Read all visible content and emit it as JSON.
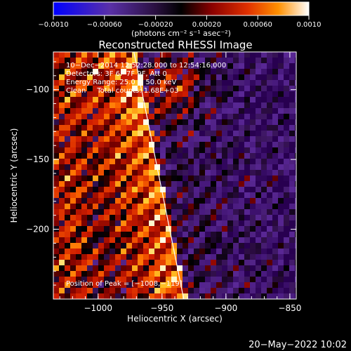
{
  "chart_data": {
    "type": "heatmap",
    "title": "Reconstructed RHESSI Image",
    "xlabel": "Heliocentric X (arcsec)",
    "ylabel": "Heliocentric Y (arcsec)",
    "xlim": [
      -1035,
      -845
    ],
    "ylim": [
      -250,
      -73
    ],
    "x_ticks": [
      {
        "value": -1000,
        "label": "−1000"
      },
      {
        "value": -950,
        "label": "−950"
      },
      {
        "value": -900,
        "label": "−900"
      },
      {
        "value": -850,
        "label": "−850"
      }
    ],
    "y_ticks": [
      {
        "value": -100,
        "label": "−100"
      },
      {
        "value": -150,
        "label": "−150"
      },
      {
        "value": -200,
        "label": "−200"
      }
    ],
    "colorbar": {
      "range": [
        -0.001,
        0.001
      ],
      "unit_label": "(photons cm⁻² s⁻¹ asec⁻²)",
      "ticks": [
        {
          "value": -0.001,
          "label": "−0.0010"
        },
        {
          "value": -0.0006,
          "label": "−0.00060"
        },
        {
          "value": -0.0002,
          "label": "−0.00020"
        },
        {
          "value": 0.0002,
          "label": "0.00020"
        },
        {
          "value": 0.0006,
          "label": "0.00060"
        },
        {
          "value": 0.001,
          "label": "0.0010"
        }
      ]
    },
    "annotations": [
      "10−Dec−2014 12:52:28.000 to 12:54:16.000",
      "Detectors: 3F 6F 7F 9F, Att 0",
      "Energy Range: 25.0 − 50.0 keV",
      "Clean     Total counts: 1.68E+03"
    ],
    "peak_label": "Position of Peak = [−1008,−119]",
    "peak": {
      "x": -1008,
      "y": -119
    },
    "limb_line": [
      {
        "x": -972,
        "y": -73
      },
      {
        "x": -933,
        "y": -250
      }
    ]
  },
  "footer": {
    "timestamp": "20−May−2022 10:02"
  }
}
